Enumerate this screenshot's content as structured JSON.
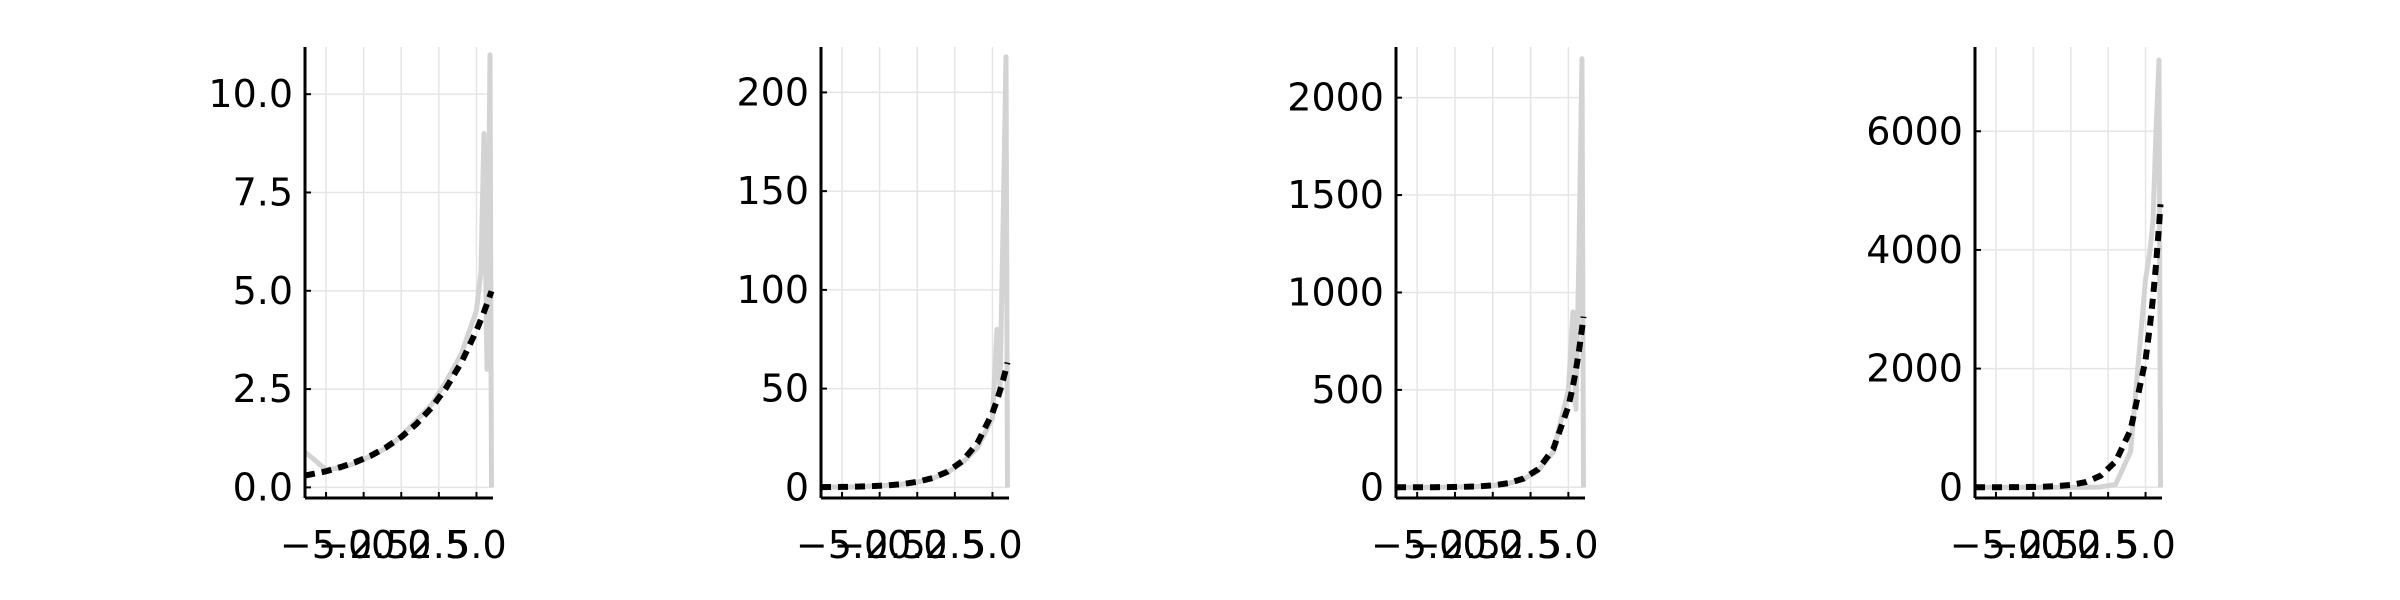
{
  "chart_data": [
    {
      "type": "line",
      "grid": true,
      "x": [
        -6.4,
        -5,
        -4,
        -3,
        -2,
        -1,
        0,
        1,
        2,
        3,
        4,
        5,
        5.3,
        5.5,
        5.7,
        5.9,
        6
      ],
      "xlim": [
        -6.4,
        6.1
      ],
      "xticks": [
        {
          "value": -5,
          "label": "−5.0"
        },
        {
          "value": -2.5,
          "label": "−2.5"
        },
        {
          "value": 0,
          "label": "0.0"
        },
        {
          "value": 2.5,
          "label": "2.5"
        },
        {
          "value": 5,
          "label": "5.0"
        }
      ],
      "ylim": [
        -0.27,
        11.2
      ],
      "yticks": [
        {
          "value": 0,
          "label": "0.0"
        },
        {
          "value": 2.5,
          "label": "2.5"
        },
        {
          "value": 5,
          "label": "5.0"
        },
        {
          "value": 7.5,
          "label": "7.5"
        },
        {
          "value": 10,
          "label": "10.0"
        }
      ],
      "series": [
        {
          "color": "#d3d3d3",
          "dashed": false,
          "values": [
            0.9,
            0.45,
            0.5,
            0.62,
            0.8,
            1.0,
            1.3,
            1.7,
            2.1,
            2.7,
            3.4,
            4.5,
            5.5,
            9,
            3,
            11,
            0
          ]
        },
        {
          "color": "#000000",
          "dashed": true,
          "values": [
            0.3,
            0.41,
            0.52,
            0.65,
            0.81,
            1.02,
            1.28,
            1.61,
            2.02,
            2.54,
            3.18,
            3.99,
            4.27,
            4.46,
            4.67,
            4.88,
            4.99
          ]
        }
      ]
    },
    {
      "type": "line",
      "grid": true,
      "x": [
        -6.4,
        -5,
        -4,
        -3,
        -2,
        -1,
        0,
        1,
        2,
        3,
        4,
        5,
        5.3,
        5.5,
        5.7,
        5.9,
        6
      ],
      "xlim": [
        -6.4,
        6.1
      ],
      "xticks": [
        {
          "value": -5,
          "label": "−5.0"
        },
        {
          "value": -2.5,
          "label": "−2.5"
        },
        {
          "value": 0,
          "label": "0.0"
        },
        {
          "value": 2.5,
          "label": "2.5"
        },
        {
          "value": 5,
          "label": "5.0"
        }
      ],
      "ylim": [
        -5.4,
        223
      ],
      "yticks": [
        0,
        50,
        100,
        150,
        200
      ],
      "series": [
        {
          "color": "#d3d3d3",
          "dashed": false,
          "values": [
            0.1,
            0.2,
            0.3,
            0.6,
            1,
            1.6,
            2.7,
            4.5,
            7.5,
            12.5,
            20,
            35,
            80,
            50,
            130,
            218,
            0
          ]
        },
        {
          "color": "#000000",
          "dashed": true,
          "values": [
            0.1,
            0.21,
            0.35,
            0.59,
            0.98,
            1.65,
            2.78,
            4.68,
            7.9,
            13.3,
            22.4,
            37.7,
            44.1,
            48.9,
            54.2,
            60,
            63.2
          ]
        }
      ]
    },
    {
      "type": "line",
      "grid": true,
      "x": [
        -6.4,
        -5,
        -4,
        -3,
        -2,
        -1,
        0,
        1,
        2,
        3,
        4,
        5,
        5.3,
        5.5,
        5.7,
        5.9,
        6
      ],
      "xlim": [
        -6.4,
        6.1
      ],
      "xticks": [
        {
          "value": -5,
          "label": "−5.0"
        },
        {
          "value": -2.5,
          "label": "−2.5"
        },
        {
          "value": 0,
          "label": "0.0"
        },
        {
          "value": 2.5,
          "label": "2.5"
        },
        {
          "value": 5,
          "label": "5.0"
        }
      ],
      "ylim": [
        -55,
        2260
      ],
      "yticks": [
        0,
        500,
        1000,
        1500,
        2000
      ],
      "series": [
        {
          "color": "#d3d3d3",
          "dashed": false,
          "values": [
            0.1,
            0.2,
            0.5,
            1,
            2,
            4,
            9,
            19,
            40,
            85,
            180,
            500,
            900,
            400,
            1200,
            2200,
            0
          ]
        },
        {
          "color": "#000000",
          "dashed": true,
          "values": [
            0.08,
            0.23,
            0.49,
            1.09,
            2.2,
            4.5,
            9.7,
            20.6,
            43.6,
            92.4,
            196,
            415,
            518,
            602,
            700,
            813,
            876
          ]
        }
      ]
    },
    {
      "type": "line",
      "grid": true,
      "x": [
        -6.4,
        -5,
        -4,
        -3,
        -2,
        -1,
        0,
        1,
        2,
        3,
        4,
        5,
        5.3,
        5.5,
        5.7,
        5.9,
        6
      ],
      "xlim": [
        -6.4,
        6.1
      ],
      "xticks": [
        {
          "value": -5,
          "label": "−5.0"
        },
        {
          "value": -2.5,
          "label": "−2.5"
        },
        {
          "value": 0,
          "label": "0.0"
        },
        {
          "value": 2.5,
          "label": "2.5"
        },
        {
          "value": 5,
          "label": "5.0"
        }
      ],
      "ylim": [
        -181,
        7420
      ],
      "yticks": [
        0,
        2000,
        4000,
        6000
      ],
      "series": [
        {
          "color": "#d3d3d3",
          "dashed": false,
          "values": [
            0,
            0,
            0,
            0,
            0,
            0,
            0,
            1,
            5,
            50,
            600,
            3500,
            4000,
            4500,
            6000,
            7200,
            0
          ]
        },
        {
          "color": "#000000",
          "dashed": true,
          "values": [
            0.24,
            0.73,
            1.6,
            3.6,
            8.1,
            18,
            39.3,
            87.5,
            195,
            434,
            966,
            2150,
            2730,
            3200,
            3750,
            4400,
            4770
          ]
        }
      ]
    }
  ]
}
